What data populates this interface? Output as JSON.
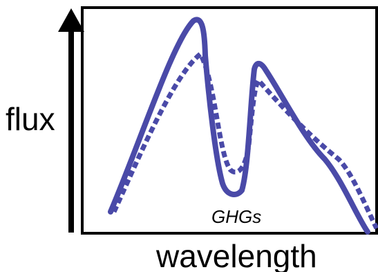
{
  "labels": {
    "y_axis": "flux",
    "x_axis": "wavelength",
    "annotation": "GHGs"
  },
  "curves": {
    "solid": {
      "style": "solid"
    },
    "dotted": {
      "style": "dotted"
    }
  },
  "colors": {
    "curve": "#4a4aa8",
    "axis": "#000000",
    "frame": "#000000",
    "background": "#ffffff"
  }
}
